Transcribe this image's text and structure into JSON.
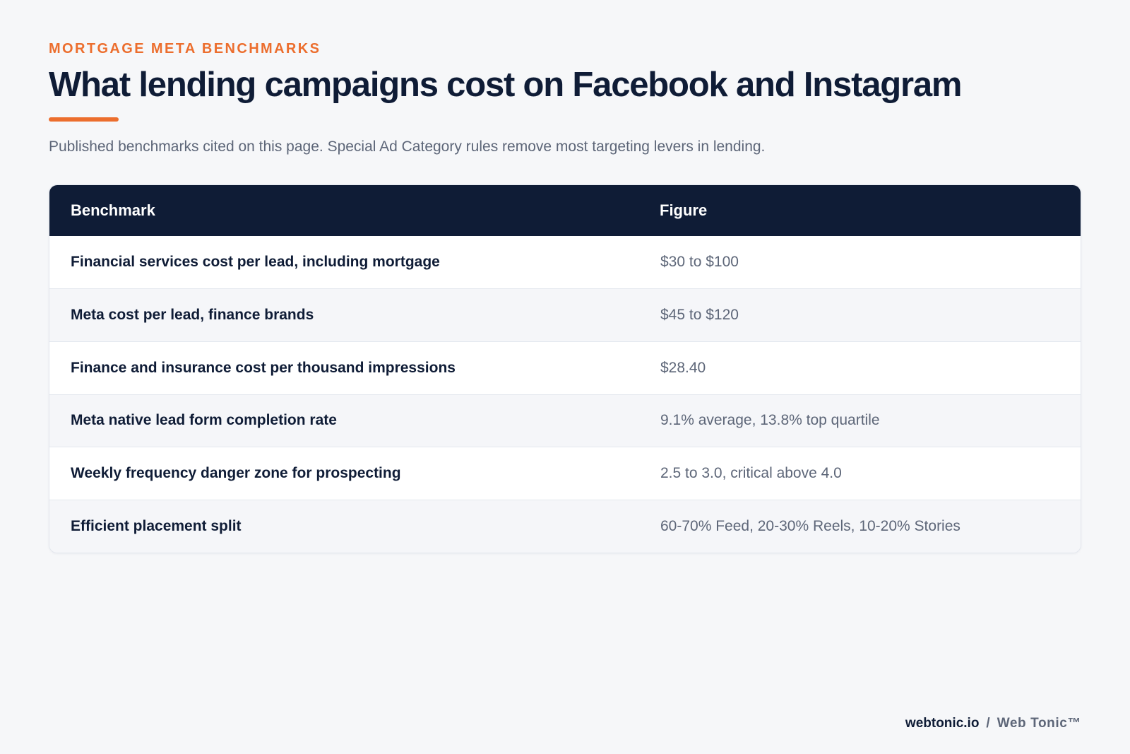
{
  "eyebrow": "MORTGAGE META BENCHMARKS",
  "title": "What lending campaigns cost on Facebook and Instagram",
  "subtitle": "Published benchmarks cited on this page. Special Ad Category rules remove most targeting levers in lending.",
  "table": {
    "headers": [
      "Benchmark",
      "Figure"
    ],
    "rows": [
      {
        "benchmark": "Financial services cost per lead, including mortgage",
        "figure": "$30 to $100"
      },
      {
        "benchmark": "Meta cost per lead, finance brands",
        "figure": "$45 to $120"
      },
      {
        "benchmark": "Finance and insurance cost per thousand impressions",
        "figure": "$28.40"
      },
      {
        "benchmark": "Meta native lead form completion rate",
        "figure": "9.1% average, 13.8% top quartile"
      },
      {
        "benchmark": "Weekly frequency danger zone for prospecting",
        "figure": "2.5 to 3.0, critical above 4.0"
      },
      {
        "benchmark": "Efficient placement split",
        "figure": "60-70% Feed, 20-30% Reels, 10-20% Stories"
      }
    ]
  },
  "footer": {
    "site": "webtonic.io",
    "separator": "/",
    "brand": "Web Tonic™"
  },
  "colors": {
    "accent": "#ec6e2e",
    "navy": "#0f1c36",
    "muted": "#5d6678",
    "background": "#f6f7f9"
  }
}
